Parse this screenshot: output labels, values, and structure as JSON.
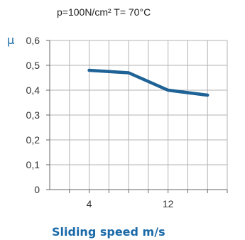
{
  "chart_data": {
    "type": "line",
    "subtitle": "p=100N/cm²    T= 70°C",
    "ylabel": "µ",
    "xlabel": "Sliding speed m/s",
    "ylim": [
      0,
      0.6
    ],
    "yticks": [
      "0",
      "0,1",
      "0,2",
      "0,3",
      "0,4",
      "0,5",
      "0,6"
    ],
    "yvalues": [
      0,
      0.1,
      0.2,
      0.3,
      0.4,
      0.5,
      0.6
    ],
    "xlim": [
      0,
      18
    ],
    "xticks": [
      "4",
      "12"
    ],
    "xtick_values": [
      4,
      12
    ],
    "grid": true,
    "series": [
      {
        "color": "#1f6296",
        "x": [
          4,
          8,
          12,
          16
        ],
        "y": [
          0.48,
          0.47,
          0.4,
          0.38
        ]
      }
    ]
  }
}
